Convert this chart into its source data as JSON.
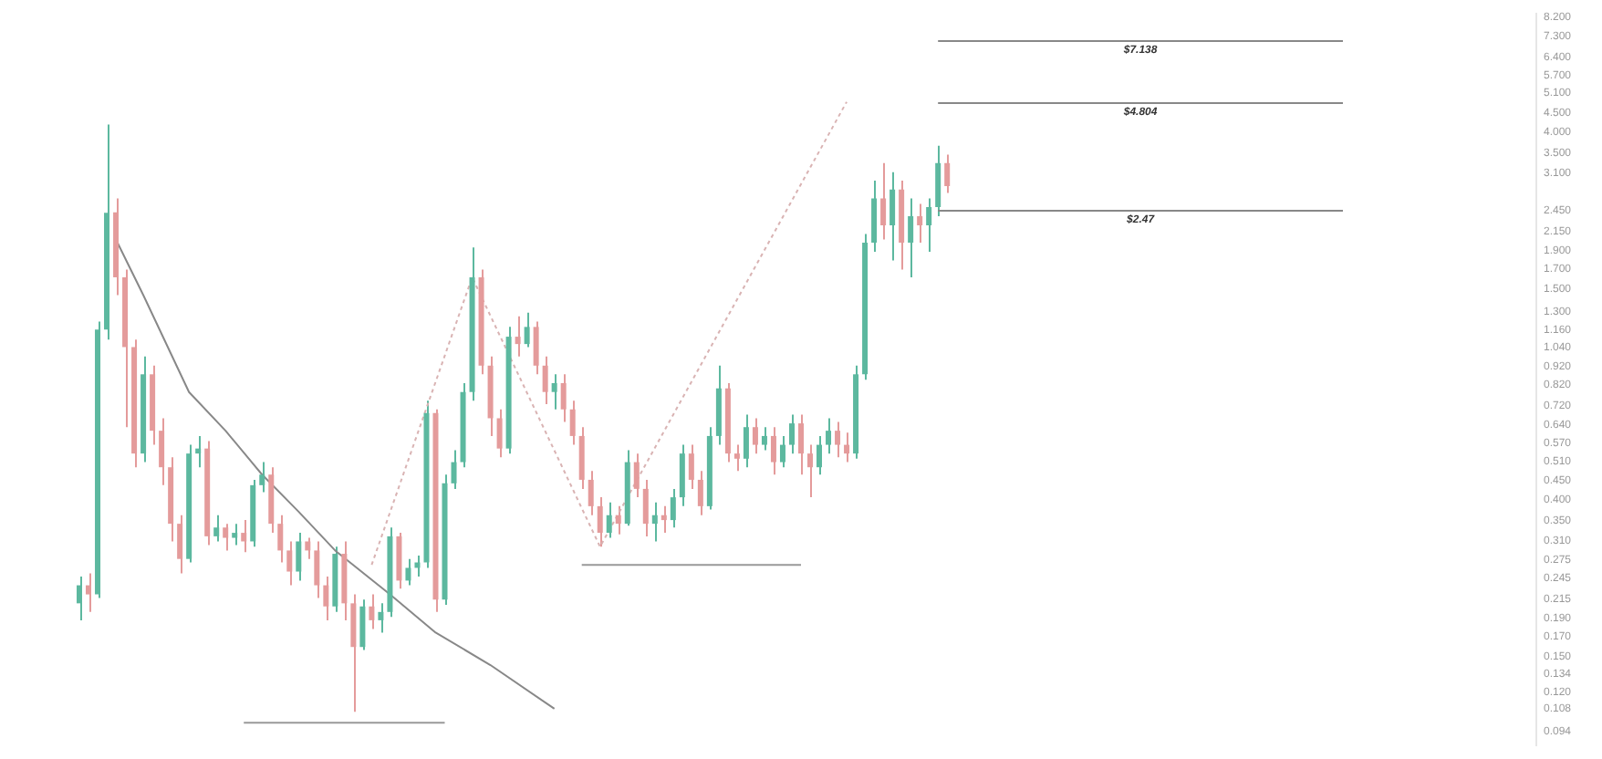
{
  "chart_data": {
    "type": "candlestick",
    "log": "y",
    "tick_labels": "y",
    "categories": [
      null,
      null,
      null,
      null,
      null,
      null,
      null,
      null,
      null,
      null,
      null,
      null,
      null,
      null,
      null,
      null,
      null,
      null,
      null,
      null,
      null,
      null,
      null,
      null,
      null,
      null,
      null,
      null,
      null,
      null,
      null,
      null,
      null,
      null,
      null,
      null,
      null,
      null,
      null,
      null,
      null,
      null,
      null,
      null,
      null,
      null,
      null,
      null,
      null,
      null,
      null,
      null,
      null,
      null,
      null,
      null,
      null,
      null,
      null,
      null,
      null,
      null,
      null,
      null,
      null,
      null,
      null,
      null,
      null,
      null,
      null,
      null,
      null,
      null,
      null,
      null,
      null,
      null,
      null,
      null,
      null,
      null,
      null,
      null,
      null,
      null,
      null,
      null,
      null,
      null,
      null,
      null,
      null,
      null,
      null,
      null,
      null,
      null,
      null,
      null,
      null,
      null,
      null,
      null,
      null,
      null,
      null,
      null,
      null,
      null,
      null,
      null,
      null,
      null,
      null,
      null,
      null,
      null,
      null,
      null,
      null,
      null,
      null,
      null,
      null,
      null,
      null,
      null,
      null,
      null,
      null,
      null,
      null,
      null,
      null,
      null,
      null,
      null,
      null,
      null,
      null,
      null,
      null,
      null,
      null,
      null,
      null,
      null,
      null,
      null,
      null,
      null,
      null,
      null,
      null,
      null,
      null,
      null,
      null,
      null
    ],
    "ohlc": [
      [
        0.209,
        0.247,
        0.188,
        0.234
      ],
      [
        0.234,
        0.252,
        0.198,
        0.221
      ],
      [
        0.221,
        1.22,
        0.216,
        1.16
      ],
      [
        1.16,
        4.19,
        1.09,
        2.41
      ],
      [
        2.42,
        2.64,
        1.44,
        1.61
      ],
      [
        1.61,
        1.69,
        0.63,
        1.04
      ],
      [
        1.04,
        1.09,
        0.49,
        0.534
      ],
      [
        0.534,
        0.98,
        0.506,
        0.877
      ],
      [
        0.877,
        0.926,
        0.564,
        0.616
      ],
      [
        0.616,
        0.666,
        0.438,
        0.49
      ],
      [
        0.49,
        0.522,
        0.308,
        0.344
      ],
      [
        0.344,
        0.363,
        0.252,
        0.276
      ],
      [
        0.276,
        0.564,
        0.27,
        0.534
      ],
      [
        0.534,
        0.596,
        0.49,
        0.551
      ],
      [
        0.551,
        0.577,
        0.301,
        0.318
      ],
      [
        0.318,
        0.363,
        0.308,
        0.336
      ],
      [
        0.336,
        0.344,
        0.291,
        0.315
      ],
      [
        0.315,
        0.344,
        0.301,
        0.325
      ],
      [
        0.325,
        0.352,
        0.288,
        0.308
      ],
      [
        0.308,
        0.453,
        0.298,
        0.438
      ],
      [
        0.438,
        0.506,
        0.419,
        0.468
      ],
      [
        0.468,
        0.49,
        0.325,
        0.344
      ],
      [
        0.344,
        0.363,
        0.27,
        0.291
      ],
      [
        0.291,
        0.308,
        0.234,
        0.255
      ],
      [
        0.255,
        0.325,
        0.241,
        0.308
      ],
      [
        0.308,
        0.315,
        0.276,
        0.291
      ],
      [
        0.291,
        0.308,
        0.216,
        0.234
      ],
      [
        0.234,
        0.247,
        0.188,
        0.205
      ],
      [
        0.205,
        0.298,
        0.198,
        0.285
      ],
      [
        0.285,
        0.308,
        0.188,
        0.209
      ],
      [
        0.209,
        0.221,
        0.106,
        0.159
      ],
      [
        0.159,
        0.214,
        0.156,
        0.205
      ],
      [
        0.205,
        0.221,
        0.178,
        0.188
      ],
      [
        0.188,
        0.209,
        0.174,
        0.198
      ],
      [
        0.198,
        0.336,
        0.192,
        0.318
      ],
      [
        0.318,
        0.325,
        0.229,
        0.241
      ],
      [
        0.241,
        0.276,
        0.234,
        0.261
      ],
      [
        0.261,
        0.282,
        0.247,
        0.27
      ],
      [
        0.27,
        0.743,
        0.261,
        0.688
      ],
      [
        0.688,
        0.704,
        0.198,
        0.214
      ],
      [
        0.214,
        0.468,
        0.207,
        0.443
      ],
      [
        0.443,
        0.545,
        0.428,
        0.506
      ],
      [
        0.506,
        0.83,
        0.49,
        0.785
      ],
      [
        0.785,
        1.94,
        0.743,
        1.61
      ],
      [
        1.61,
        1.69,
        0.877,
        0.926
      ],
      [
        0.926,
        0.98,
        0.596,
        0.666
      ],
      [
        0.666,
        0.704,
        0.522,
        0.551
      ],
      [
        0.551,
        1.18,
        0.534,
        1.11
      ],
      [
        1.11,
        1.26,
        0.98,
        1.06
      ],
      [
        1.06,
        1.29,
        1.04,
        1.18
      ],
      [
        1.18,
        1.22,
        0.877,
        0.926
      ],
      [
        0.926,
        0.98,
        0.728,
        0.785
      ],
      [
        0.785,
        0.877,
        0.704,
        0.83
      ],
      [
        0.83,
        0.877,
        0.651,
        0.704
      ],
      [
        0.704,
        0.743,
        0.564,
        0.596
      ],
      [
        0.596,
        0.63,
        0.428,
        0.453
      ],
      [
        0.453,
        0.479,
        0.363,
        0.384
      ],
      [
        0.384,
        0.406,
        0.298,
        0.325
      ],
      [
        0.325,
        0.393,
        0.315,
        0.363
      ],
      [
        0.363,
        0.384,
        0.322,
        0.344
      ],
      [
        0.344,
        0.545,
        0.34,
        0.506
      ],
      [
        0.506,
        0.534,
        0.406,
        0.428
      ],
      [
        0.428,
        0.453,
        0.318,
        0.344
      ],
      [
        0.344,
        0.393,
        0.308,
        0.363
      ],
      [
        0.363,
        0.384,
        0.325,
        0.352
      ],
      [
        0.352,
        0.428,
        0.336,
        0.406
      ],
      [
        0.406,
        0.564,
        0.384,
        0.534
      ],
      [
        0.534,
        0.564,
        0.428,
        0.453
      ],
      [
        0.453,
        0.479,
        0.363,
        0.384
      ],
      [
        0.384,
        0.63,
        0.376,
        0.596
      ],
      [
        0.596,
        0.926,
        0.564,
        0.803
      ],
      [
        0.803,
        0.83,
        0.506,
        0.534
      ],
      [
        0.534,
        0.564,
        0.479,
        0.517
      ],
      [
        0.517,
        0.681,
        0.49,
        0.63
      ],
      [
        0.63,
        0.666,
        0.534,
        0.564
      ],
      [
        0.564,
        0.63,
        0.545,
        0.596
      ],
      [
        0.596,
        0.63,
        0.468,
        0.506
      ],
      [
        0.506,
        0.596,
        0.49,
        0.564
      ],
      [
        0.564,
        0.681,
        0.534,
        0.645
      ],
      [
        0.645,
        0.681,
        0.468,
        0.534
      ],
      [
        0.534,
        0.564,
        0.406,
        0.49
      ],
      [
        0.49,
        0.596,
        0.468,
        0.564
      ],
      [
        0.564,
        0.666,
        0.534,
        0.616
      ],
      [
        0.616,
        0.651,
        0.522,
        0.564
      ],
      [
        0.564,
        0.609,
        0.506,
        0.534
      ],
      [
        0.534,
        0.926,
        0.517,
        0.877
      ],
      [
        0.877,
        2.11,
        0.848,
        2.0
      ],
      [
        2.0,
        2.95,
        1.89,
        2.64
      ],
      [
        2.64,
        3.29,
        2.04,
        2.23
      ],
      [
        2.23,
        3.11,
        1.79,
        2.79
      ],
      [
        2.79,
        2.95,
        1.69,
        2.0
      ],
      [
        2.0,
        2.64,
        1.61,
        2.36
      ],
      [
        2.36,
        2.55,
        2.0,
        2.23
      ],
      [
        2.23,
        2.64,
        1.89,
        2.5
      ],
      [
        2.5,
        3.67,
        2.36,
        3.29
      ],
      [
        3.29,
        3.47,
        2.73,
        2.85
      ],
      null,
      null,
      null,
      null,
      null,
      null,
      null,
      null,
      null,
      null,
      null,
      null,
      null,
      null,
      null,
      null,
      null,
      null,
      null,
      null,
      null,
      null,
      null,
      null,
      null,
      null,
      null,
      null,
      null,
      null,
      null,
      null,
      null,
      null,
      null,
      null,
      null,
      null,
      null,
      null,
      null,
      null,
      null,
      null,
      null,
      null,
      null,
      null,
      null,
      null,
      null,
      null,
      null,
      null,
      null,
      null,
      null,
      null,
      null,
      null,
      null,
      null,
      null,
      null
    ],
    "colors": [
      "#5cb89f",
      "#e49b9b",
      "#5cb89f",
      "#5cb89f",
      "#e49b9b",
      "#e49b9b",
      "#e49b9b",
      "#5cb89f",
      "#e49b9b",
      "#e49b9b",
      "#e49b9b",
      "#e49b9b",
      "#5cb89f",
      "#5cb89f",
      "#e49b9b",
      "#5cb89f",
      "#e49b9b",
      "#5cb89f",
      "#e49b9b",
      "#5cb89f",
      "#5cb89f",
      "#e49b9b",
      "#e49b9b",
      "#e49b9b",
      "#5cb89f",
      "#e49b9b",
      "#e49b9b",
      "#e49b9b",
      "#5cb89f",
      "#e49b9b",
      "#e49b9b",
      "#5cb89f",
      "#e49b9b",
      "#5cb89f",
      "#5cb89f",
      "#e49b9b",
      "#5cb89f",
      "#5cb89f",
      "#5cb89f",
      "#e49b9b",
      "#5cb89f",
      "#5cb89f",
      "#5cb89f",
      "#5cb89f",
      "#e49b9b",
      "#e49b9b",
      "#e49b9b",
      "#5cb89f",
      "#e49b9b",
      "#5cb89f",
      "#e49b9b",
      "#e49b9b",
      "#5cb89f",
      "#e49b9b",
      "#e49b9b",
      "#e49b9b",
      "#e49b9b",
      "#e49b9b",
      "#5cb89f",
      "#e49b9b",
      "#5cb89f",
      "#e49b9b",
      "#e49b9b",
      "#5cb89f",
      "#e49b9b",
      "#5cb89f",
      "#5cb89f",
      "#e49b9b",
      "#e49b9b",
      "#5cb89f",
      "#5cb89f",
      "#e49b9b",
      "#e49b9b",
      "#5cb89f",
      "#e49b9b",
      "#5cb89f",
      "#e49b9b",
      "#5cb89f",
      "#5cb89f",
      "#e49b9b",
      "#e49b9b",
      "#5cb89f",
      "#5cb89f",
      "#e49b9b",
      "#e49b9b",
      "#5cb89f",
      "#5cb89f",
      "#5cb89f",
      "#e49b9b",
      "#5cb89f",
      "#e49b9b",
      "#5cb89f",
      "#e49b9b",
      "#5cb89f",
      "#5cb89f",
      "#e49b9b",
      null,
      null,
      null,
      null,
      null,
      null,
      null,
      null,
      null,
      null,
      null,
      null,
      null,
      null,
      null,
      null,
      null,
      null,
      null,
      null,
      null,
      null,
      null,
      null,
      null,
      null,
      null,
      null,
      null,
      null,
      null,
      null,
      null,
      null,
      null,
      null,
      null,
      null,
      null,
      null,
      null,
      null,
      null,
      null,
      null,
      null,
      null,
      null,
      null,
      null,
      null,
      null,
      null,
      null,
      null,
      null,
      null,
      null,
      null,
      null,
      null,
      null,
      null,
      null
    ],
    "series": [
      {
        "type": "line",
        "color": "#888888",
        "line_style": "solid",
        "values": [
          null,
          null,
          null,
          null,
          2.04,
          null,
          null,
          1.44,
          null,
          null,
          null,
          null,
          0.785,
          null,
          null,
          null,
          0.616,
          null,
          null,
          null,
          0.468,
          null,
          null,
          null,
          0.371,
          null,
          null,
          null,
          0.291,
          null,
          null,
          null,
          null,
          null,
          0.221,
          null,
          null,
          null,
          null,
          0.174,
          null,
          null,
          null,
          null,
          null,
          0.142,
          null,
          null,
          null,
          null,
          null,
          null,
          0.108,
          null,
          null,
          null,
          null,
          null,
          null,
          null,
          null,
          null,
          null,
          null,
          null,
          null,
          null,
          null,
          null,
          null,
          null,
          null,
          null,
          null,
          null,
          null,
          null,
          null,
          null,
          null,
          null,
          null,
          null,
          null,
          null,
          null,
          null,
          null,
          null,
          null,
          null,
          null,
          null,
          null,
          null,
          null,
          null,
          null,
          null,
          null,
          null,
          null,
          null,
          null,
          null,
          null,
          null,
          null,
          null,
          null,
          null,
          null,
          null,
          null,
          null,
          null,
          null,
          null,
          null,
          null,
          null,
          null,
          null,
          null,
          null,
          null,
          null,
          null,
          null,
          null,
          null,
          null,
          null,
          null,
          null,
          null,
          null,
          null,
          null,
          null,
          null,
          null,
          null,
          null,
          null,
          null,
          null,
          null,
          null,
          null,
          null,
          null,
          null,
          null,
          null,
          null,
          null,
          null,
          null,
          null
        ]
      },
      {
        "type": "line",
        "color": "#d9b3b3",
        "line_style": "dotted",
        "values": [
          null,
          null,
          null,
          null,
          null,
          null,
          null,
          null,
          null,
          null,
          null,
          null,
          null,
          null,
          null,
          null,
          null,
          null,
          null,
          null,
          null,
          null,
          null,
          null,
          null,
          null,
          null,
          null,
          null,
          null,
          null,
          null,
          0.266,
          null,
          null,
          null,
          null,
          null,
          null,
          null,
          null,
          null,
          null,
          1.61,
          null,
          null,
          null,
          null,
          null,
          null,
          null,
          null,
          null,
          null,
          null,
          null,
          null,
          0.298,
          null,
          null,
          null,
          null,
          null,
          null,
          null,
          null,
          null,
          null,
          null,
          null,
          null,
          null,
          null,
          null,
          null,
          null,
          null,
          null,
          null,
          null,
          null,
          null,
          null,
          null,
          4.83,
          null,
          null,
          null,
          null,
          null,
          null,
          null,
          null,
          null,
          null,
          null,
          null,
          null,
          null,
          null,
          null,
          null,
          null,
          null,
          null,
          null,
          null,
          null,
          null,
          null,
          null,
          null,
          null,
          null,
          null,
          null,
          null,
          null,
          null,
          null,
          null,
          null,
          null,
          null,
          null,
          null,
          null,
          null,
          null,
          null,
          null,
          null,
          null,
          null,
          null,
          null,
          null,
          null,
          null,
          null,
          null,
          null,
          null,
          null,
          null,
          null,
          null,
          null,
          null,
          null,
          null,
          null,
          null,
          null,
          null,
          null,
          null,
          null,
          null,
          null
        ]
      },
      {
        "type": "line",
        "color": "#999999",
        "line_style": "solid",
        "values": [
          null,
          null,
          null,
          null,
          null,
          null,
          null,
          null,
          null,
          null,
          null,
          null,
          null,
          null,
          null,
          null,
          null,
          null,
          0.099,
          null,
          null,
          null,
          null,
          null,
          null,
          null,
          null,
          null,
          null,
          null,
          null,
          null,
          null,
          null,
          null,
          null,
          null,
          null,
          null,
          null,
          0.099,
          null,
          null,
          null,
          null,
          null,
          null,
          null,
          null,
          null,
          null,
          null,
          null,
          null,
          null,
          null,
          null,
          null,
          null,
          null,
          null,
          null,
          null,
          null,
          null,
          null,
          null,
          null,
          null,
          null,
          null,
          null,
          null,
          null,
          null,
          null,
          null,
          null,
          null,
          null,
          null,
          null,
          null,
          null,
          null,
          null,
          null,
          null,
          null,
          null,
          null,
          null,
          null,
          null,
          null,
          null,
          null,
          null,
          null,
          null,
          null,
          null,
          null,
          null,
          null,
          null,
          null,
          null,
          null,
          null,
          null,
          null,
          null,
          null,
          null,
          null,
          null,
          null,
          null,
          null,
          null,
          null,
          null,
          null,
          null,
          null,
          null,
          null,
          null,
          null,
          null,
          null,
          null,
          null,
          null,
          null,
          null,
          null,
          null,
          null,
          null,
          null,
          null,
          null,
          null,
          null,
          null,
          null,
          null,
          null,
          null,
          null,
          null,
          null,
          null,
          null,
          null,
          null,
          null,
          null
        ]
      },
      {
        "type": "line",
        "color": "#999999",
        "line_style": "solid",
        "values": [
          null,
          null,
          null,
          null,
          null,
          null,
          null,
          null,
          null,
          null,
          null,
          null,
          null,
          null,
          null,
          null,
          null,
          null,
          null,
          null,
          null,
          null,
          null,
          null,
          null,
          null,
          null,
          null,
          null,
          null,
          null,
          null,
          null,
          null,
          null,
          null,
          null,
          null,
          null,
          null,
          null,
          null,
          null,
          null,
          null,
          null,
          null,
          null,
          null,
          null,
          null,
          null,
          null,
          null,
          null,
          0.266,
          null,
          null,
          null,
          null,
          null,
          null,
          null,
          null,
          null,
          null,
          null,
          null,
          null,
          null,
          null,
          null,
          null,
          null,
          null,
          null,
          null,
          null,
          null,
          0.266,
          null,
          null,
          null,
          null,
          null,
          null,
          null,
          null,
          null,
          null,
          null,
          null,
          null,
          null,
          null,
          null,
          null,
          null,
          null,
          null,
          null,
          null,
          null,
          null,
          null,
          null,
          null,
          null,
          null,
          null,
          null,
          null,
          null,
          null,
          null,
          null,
          null,
          null,
          null,
          null,
          null,
          null,
          null,
          null,
          null,
          null,
          null,
          null,
          null,
          null,
          null,
          null,
          null,
          null,
          null,
          null,
          null,
          null,
          null,
          null,
          null,
          null,
          null,
          null,
          null,
          null,
          null,
          null,
          null,
          null,
          null,
          null,
          null,
          null,
          null,
          null,
          null,
          null,
          null,
          null
        ]
      }
    ],
    "ref_lines": [
      {
        "axis": "y",
        "value": 7.138,
        "label": "$7.138",
        "color": "#888888"
      },
      {
        "axis": "y",
        "value": 4.804,
        "label": "$4.804",
        "color": "#888888"
      },
      {
        "axis": "y",
        "value": 2.47,
        "label": "$2.47",
        "color": "#888888"
      }
    ],
    "ylim": [
      0.086,
      8.38
    ],
    "yticks": [
      {
        "value": 8.2,
        "label": "8.200"
      },
      {
        "value": 7.3,
        "label": "7.300"
      },
      {
        "value": 6.4,
        "label": "6.400"
      },
      {
        "value": 5.7,
        "label": "5.700"
      },
      {
        "value": 5.1,
        "label": "5.100"
      },
      {
        "value": 4.5,
        "label": "4.500"
      },
      {
        "value": 4.0,
        "label": "4.000"
      },
      {
        "value": 3.5,
        "label": "3.500"
      },
      {
        "value": 3.1,
        "label": "3.100"
      },
      {
        "value": 2.45,
        "label": "2.450"
      },
      {
        "value": 2.15,
        "label": "2.150"
      },
      {
        "value": 1.9,
        "label": "1.900"
      },
      {
        "value": 1.7,
        "label": "1.700"
      },
      {
        "value": 1.5,
        "label": "1.500"
      },
      {
        "value": 1.3,
        "label": "1.300"
      },
      {
        "value": 1.16,
        "label": "1.160"
      },
      {
        "value": 1.04,
        "label": "1.040"
      },
      {
        "value": 0.92,
        "label": "0.920"
      },
      {
        "value": 0.82,
        "label": "0.820"
      },
      {
        "value": 0.72,
        "label": "0.720"
      },
      {
        "value": 0.64,
        "label": "0.640"
      },
      {
        "value": 0.57,
        "label": "0.570"
      },
      {
        "value": 0.51,
        "label": "0.510"
      },
      {
        "value": 0.45,
        "label": "0.450"
      },
      {
        "value": 0.4,
        "label": "0.400"
      },
      {
        "value": 0.35,
        "label": "0.350"
      },
      {
        "value": 0.31,
        "label": "0.310"
      },
      {
        "value": 0.275,
        "label": "0.275"
      },
      {
        "value": 0.245,
        "label": "0.245"
      },
      {
        "value": 0.215,
        "label": "0.215"
      },
      {
        "value": 0.19,
        "label": "0.190"
      },
      {
        "value": 0.17,
        "label": "0.170"
      },
      {
        "value": 0.15,
        "label": "0.150"
      },
      {
        "value": 0.134,
        "label": "0.134"
      },
      {
        "value": 0.12,
        "label": "0.120"
      },
      {
        "value": 0.108,
        "label": "0.108"
      },
      {
        "value": 0.094,
        "label": "0.094"
      }
    ]
  }
}
